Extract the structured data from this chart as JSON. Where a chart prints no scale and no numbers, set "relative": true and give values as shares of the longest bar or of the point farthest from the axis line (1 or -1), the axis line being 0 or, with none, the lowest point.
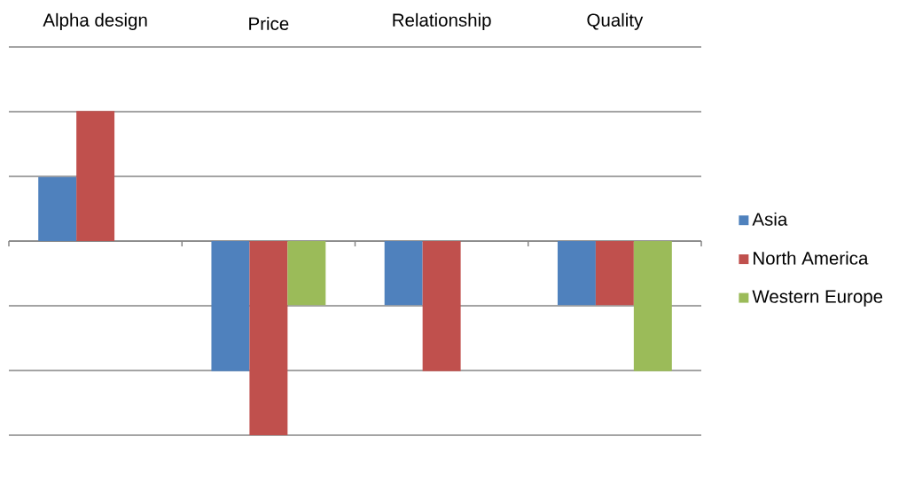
{
  "chart_data": {
    "type": "bar",
    "relative": true,
    "categories": [
      "Alpha design",
      "Price",
      "Relationship",
      "Quality"
    ],
    "series": [
      {
        "name": "Asia",
        "color": "#4f81bd",
        "values": [
          0.33,
          -0.67,
          -0.33,
          -0.33
        ]
      },
      {
        "name": "North America",
        "color": "#c0504d",
        "values": [
          0.67,
          -1,
          -0.67,
          -0.33
        ]
      },
      {
        "name": "Western Europe",
        "color": "#9bbb59",
        "values": [
          null,
          -0.33,
          null,
          -0.67
        ]
      }
    ],
    "grid": "y",
    "legend": "right"
  }
}
